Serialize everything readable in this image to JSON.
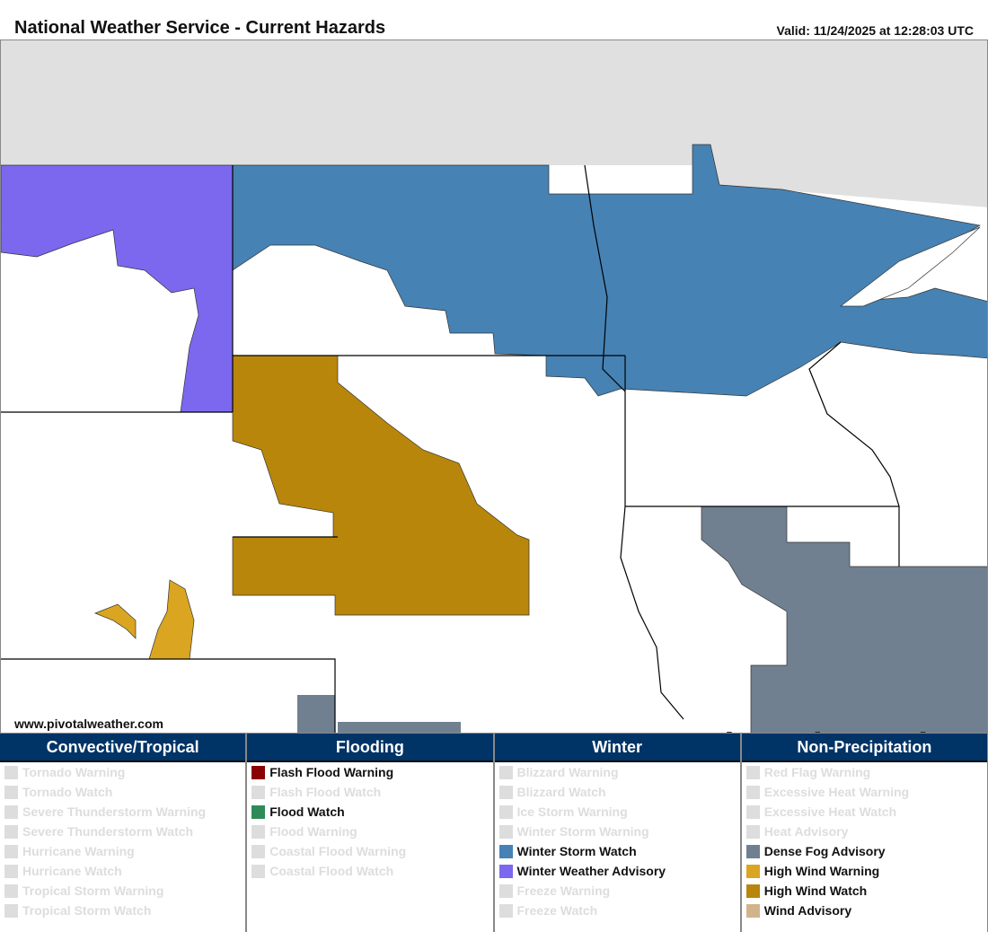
{
  "header": {
    "title": "National Weather Service - Current Hazards",
    "valid": "Valid: 11/24/2025 at 12:28:03 UTC"
  },
  "map": {
    "site": "www.pivotalweather.com",
    "logo": "pivotal weather",
    "colors": {
      "winter_weather_advisory": "#7b68ee",
      "winter_storm_watch": "#4682b4",
      "high_wind_watch": "#b8860b",
      "high_wind_warning": "#daa520",
      "dense_fog_advisory": "#708090",
      "background": "#e0e0e0"
    }
  },
  "legend": [
    {
      "title": "Convective/Tropical",
      "items": [
        {
          "label": "Tornado Warning",
          "active": false,
          "color": "#dddddd"
        },
        {
          "label": "Tornado Watch",
          "active": false,
          "color": "#dddddd"
        },
        {
          "label": "Severe Thunderstorm Warning",
          "active": false,
          "color": "#dddddd"
        },
        {
          "label": "Severe Thunderstorm Watch",
          "active": false,
          "color": "#dddddd"
        },
        {
          "label": "Hurricane Warning",
          "active": false,
          "color": "#dddddd"
        },
        {
          "label": "Hurricane Watch",
          "active": false,
          "color": "#dddddd"
        },
        {
          "label": "Tropical Storm Warning",
          "active": false,
          "color": "#dddddd"
        },
        {
          "label": "Tropical Storm Watch",
          "active": false,
          "color": "#dddddd"
        }
      ]
    },
    {
      "title": "Flooding",
      "items": [
        {
          "label": "Flash Flood Warning",
          "active": true,
          "color": "#8b0000"
        },
        {
          "label": "Flash Flood Watch",
          "active": false,
          "color": "#dddddd"
        },
        {
          "label": "Flood Watch",
          "active": true,
          "color": "#2e8b57"
        },
        {
          "label": "Flood Warning",
          "active": false,
          "color": "#dddddd"
        },
        {
          "label": "Coastal Flood Warning",
          "active": false,
          "color": "#dddddd"
        },
        {
          "label": "Coastal Flood Watch",
          "active": false,
          "color": "#dddddd"
        }
      ]
    },
    {
      "title": "Winter",
      "items": [
        {
          "label": "Blizzard Warning",
          "active": false,
          "color": "#dddddd"
        },
        {
          "label": "Blizzard Watch",
          "active": false,
          "color": "#dddddd"
        },
        {
          "label": "Ice Storm Warning",
          "active": false,
          "color": "#dddddd"
        },
        {
          "label": "Winter Storm Warning",
          "active": false,
          "color": "#dddddd"
        },
        {
          "label": "Winter Storm Watch",
          "active": true,
          "color": "#4682b4"
        },
        {
          "label": "Winter Weather Advisory",
          "active": true,
          "color": "#7b68ee"
        },
        {
          "label": "Freeze Warning",
          "active": false,
          "color": "#dddddd"
        },
        {
          "label": "Freeze Watch",
          "active": false,
          "color": "#dddddd"
        }
      ]
    },
    {
      "title": "Non-Precipitation",
      "items": [
        {
          "label": "Red Flag Warning",
          "active": false,
          "color": "#dddddd"
        },
        {
          "label": "Excessive Heat Warning",
          "active": false,
          "color": "#dddddd"
        },
        {
          "label": "Excessive Heat Watch",
          "active": false,
          "color": "#dddddd"
        },
        {
          "label": "Heat Advisory",
          "active": false,
          "color": "#dddddd"
        },
        {
          "label": "Dense Fog Advisory",
          "active": true,
          "color": "#708090"
        },
        {
          "label": "High Wind Warning",
          "active": true,
          "color": "#daa520"
        },
        {
          "label": "High Wind Watch",
          "active": true,
          "color": "#b8860b"
        },
        {
          "label": "Wind Advisory",
          "active": true,
          "color": "#d2b48c"
        }
      ]
    }
  ]
}
